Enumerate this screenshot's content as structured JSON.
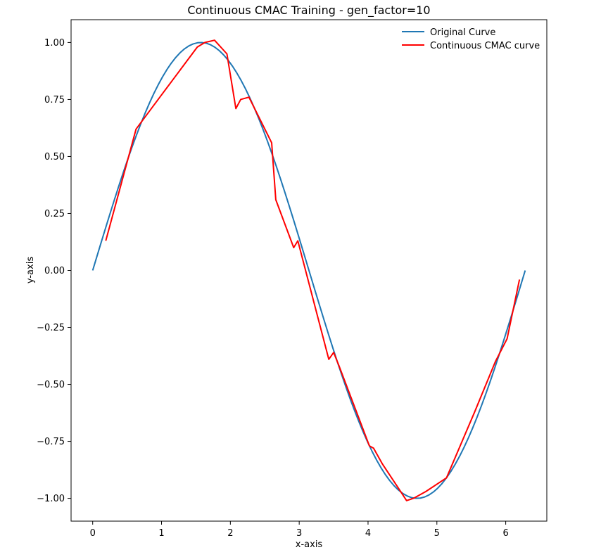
{
  "chart_data": {
    "type": "line",
    "title": "Continuous CMAC Training - gen_factor=10",
    "xlabel": "x-axis",
    "ylabel": "y-axis",
    "xlim": [
      -0.314,
      6.597
    ],
    "ylim": [
      -1.1,
      1.1
    ],
    "xticks": [
      0,
      1,
      2,
      3,
      4,
      5,
      6
    ],
    "yticks": [
      -1.0,
      -0.75,
      -0.5,
      -0.25,
      0.0,
      0.25,
      0.5,
      0.75,
      1.0
    ],
    "xtick_labels": [
      "0",
      "1",
      "2",
      "3",
      "4",
      "5",
      "6"
    ],
    "ytick_labels": [
      "−1.00",
      "−0.75",
      "−0.50",
      "−0.25",
      "0.00",
      "0.25",
      "0.50",
      "0.75",
      "1.00"
    ],
    "grid": false,
    "legend_position": "top-right",
    "series": [
      {
        "name": "Original Curve",
        "color": "#1f77b4",
        "function": "sin",
        "x_start": 0,
        "x_end": 6.283,
        "points": 100
      },
      {
        "name": "Continuous CMAC curve",
        "color": "#ff0000",
        "x": [
          0.19,
          0.63,
          1.0,
          1.52,
          1.63,
          1.77,
          1.95,
          2.08,
          2.15,
          2.27,
          2.6,
          2.66,
          2.92,
          2.98,
          3.43,
          3.5,
          3.58,
          4.02,
          4.08,
          4.21,
          4.43,
          4.56,
          4.66,
          4.84,
          5.14,
          5.55,
          5.85,
          6.02,
          6.2
        ],
        "y": [
          0.13,
          0.62,
          0.77,
          0.98,
          1.0,
          1.01,
          0.95,
          0.71,
          0.75,
          0.76,
          0.56,
          0.31,
          0.1,
          0.13,
          -0.39,
          -0.36,
          -0.42,
          -0.77,
          -0.78,
          -0.85,
          -0.95,
          -1.01,
          -1.0,
          -0.97,
          -0.91,
          -0.62,
          -0.4,
          -0.3,
          -0.04
        ]
      }
    ]
  }
}
